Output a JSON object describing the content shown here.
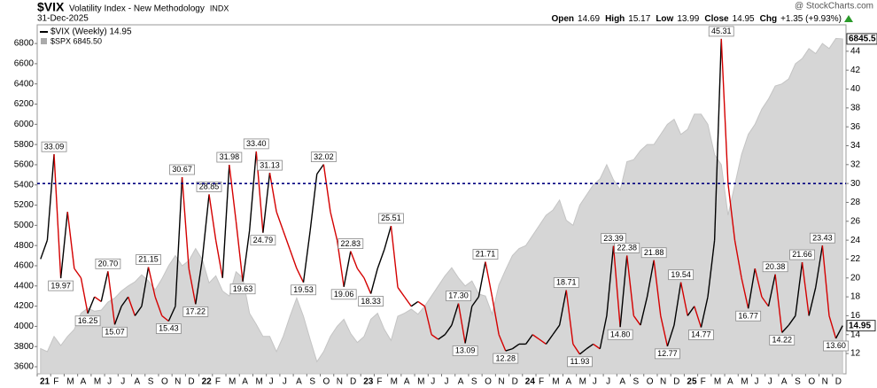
{
  "header": {
    "symbol": "$VIX",
    "name": "Volatility Index - New Methodology",
    "exchange": "INDX",
    "date": "31-Dec-2025",
    "source": "@ StockCharts.com",
    "quote": [
      {
        "label": "Open",
        "value": "14.69"
      },
      {
        "label": "High",
        "value": "15.17"
      },
      {
        "label": "Low",
        "value": "13.99"
      },
      {
        "label": "Close",
        "value": "14.95"
      },
      {
        "label": "Chg",
        "value": "+1.35 (+9.93%)"
      }
    ]
  },
  "chart_data": {
    "type": "line",
    "x_labels": [
      "21",
      "F",
      "M",
      "A",
      "M",
      "J",
      "J",
      "A",
      "S",
      "O",
      "N",
      "D",
      "22",
      "F",
      "M",
      "A",
      "M",
      "J",
      "J",
      "A",
      "S",
      "O",
      "N",
      "D",
      "23",
      "F",
      "M",
      "A",
      "M",
      "J",
      "J",
      "A",
      "S",
      "O",
      "N",
      "D",
      "24",
      "F",
      "M",
      "A",
      "M",
      "J",
      "J",
      "A",
      "S",
      "O",
      "N",
      "D",
      "25",
      "F",
      "M",
      "A",
      "M",
      "J",
      "J",
      "A",
      "S",
      "O",
      "N",
      "D"
    ],
    "ylim": [
      3530,
      6985
    ],
    "yticks": [
      3600,
      3800,
      4000,
      4200,
      4400,
      4600,
      4800,
      5000,
      5200,
      5400,
      5600,
      5800,
      6000,
      6200,
      6400,
      6600,
      6800
    ],
    "y2lim": [
      9.85,
      46.8
    ],
    "y2ticks": [
      12,
      14,
      16,
      18,
      20,
      22,
      24,
      26,
      28,
      30,
      32,
      34,
      36,
      38,
      40,
      42,
      44
    ],
    "reference_line": {
      "value": 30,
      "axis": "y2",
      "color": "#00007f"
    },
    "grid": false,
    "legend": "top-left",
    "series": [
      {
        "name": "$VIX (Weekly) 14.95",
        "axis": "y2",
        "color": "#000000",
        "down_color": "#d40000",
        "values": [
          22,
          24,
          33.09,
          19.97,
          27,
          21,
          20,
          16.25,
          18,
          17.5,
          20.7,
          15.07,
          17,
          18,
          16,
          17,
          21.15,
          18,
          16,
          15.43,
          17,
          30.67,
          21,
          17.22,
          22,
          28.85,
          24,
          20,
          31.98,
          26,
          19.63,
          25,
          33.4,
          24.79,
          31.13,
          27,
          25,
          23,
          21,
          19.53,
          25,
          31,
          32.02,
          27,
          24,
          19.06,
          22.83,
          21,
          20,
          18.33,
          21,
          23,
          25.51,
          19,
          18,
          17,
          17.5,
          17,
          14,
          13.5,
          14,
          15,
          17.3,
          13.09,
          17,
          18,
          21.71,
          18,
          14,
          12.28,
          12.5,
          13,
          13,
          14,
          13.5,
          13,
          14,
          15,
          18.71,
          13,
          11.93,
          12.5,
          13,
          12.5,
          16,
          23.39,
          14.8,
          22.38,
          16,
          15,
          18,
          21.88,
          16,
          12.77,
          15,
          19.54,
          16,
          17,
          14.77,
          18,
          24,
          45.31,
          30,
          24,
          20,
          16.77,
          21,
          18,
          17,
          20.38,
          14.22,
          15,
          16,
          21.66,
          16,
          19,
          23.43,
          16,
          13.6,
          14.95
        ],
        "value_labels": [
          null,
          null,
          "33.09",
          "19.97",
          null,
          null,
          null,
          "16.25",
          null,
          null,
          "20.70",
          "15.07",
          null,
          null,
          null,
          null,
          "21.15",
          null,
          null,
          "15.43",
          null,
          "30.67",
          null,
          "17.22",
          null,
          "28.85",
          null,
          null,
          "31.98",
          null,
          "19.63",
          null,
          "33.40",
          "24.79",
          "31.13",
          null,
          null,
          null,
          null,
          "19.53",
          null,
          null,
          "32.02",
          null,
          null,
          "19.06",
          "22.83",
          null,
          null,
          "18.33",
          null,
          null,
          "25.51",
          null,
          null,
          null,
          null,
          null,
          null,
          null,
          null,
          null,
          "17.30",
          "13.09",
          null,
          null,
          "21.71",
          null,
          null,
          "12.28",
          null,
          null,
          null,
          null,
          null,
          null,
          null,
          null,
          "18.71",
          null,
          "11.93",
          null,
          null,
          null,
          null,
          "23.39",
          "14.80",
          "22.38",
          null,
          null,
          null,
          "21.88",
          null,
          "12.77",
          null,
          "19.54",
          null,
          null,
          "14.77",
          null,
          null,
          "45.31",
          null,
          null,
          null,
          "16.77",
          null,
          null,
          null,
          "20.38",
          "14.22",
          null,
          null,
          "21.66",
          null,
          null,
          "23.43",
          null,
          "13.60",
          null
        ]
      },
      {
        "name": "$SPX 6845.50",
        "axis": "y",
        "type": "area",
        "color": "#d6d6d6",
        "values": [
          3780,
          3750,
          3900,
          3810,
          3900,
          3970,
          4130,
          4180,
          4150,
          4160,
          4240,
          4280,
          4350,
          4400,
          4440,
          4510,
          4450,
          4360,
          4470,
          4600,
          4700,
          4600,
          4650,
          4770,
          4660,
          4430,
          4500,
          4350,
          4300,
          4540,
          4480,
          4130,
          4020,
          3900,
          3900,
          3750,
          3900,
          4100,
          4280,
          4100,
          3870,
          3650,
          3750,
          3900,
          4000,
          4070,
          3930,
          3840,
          3900,
          4070,
          4130,
          3970,
          3860,
          4100,
          4130,
          4170,
          4120,
          4200,
          4300,
          4400,
          4500,
          4580,
          4480,
          4400,
          4450,
          4320,
          4300,
          4120,
          4410,
          4560,
          4700,
          4770,
          4800,
          4900,
          5000,
          5100,
          5150,
          5250,
          5050,
          5000,
          5200,
          5300,
          5400,
          5460,
          5600,
          5450,
          5350,
          5630,
          5650,
          5740,
          5800,
          5800,
          5900,
          6000,
          6050,
          5900,
          5950,
          6100,
          6100,
          6000,
          5700,
          5600,
          5100,
          5400,
          5700,
          5900,
          6000,
          6150,
          6250,
          6380,
          6400,
          6450,
          6600,
          6650,
          6750,
          6700,
          6800,
          6750,
          6850,
          6845.5
        ]
      }
    ]
  }
}
